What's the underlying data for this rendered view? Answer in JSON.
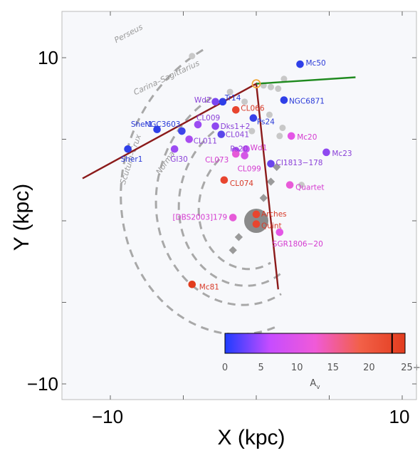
{
  "chart_data": {
    "type": "scatter",
    "xlabel": "X (kpc)",
    "ylabel": "Y (kpc)",
    "xlim": [
      -12,
      10
    ],
    "ylim": [
      -10.5,
      12
    ],
    "x_ticks": [
      {
        "value": -10,
        "label": "−10"
      },
      {
        "value": 10,
        "label": "10"
      }
    ],
    "y_ticks": [
      {
        "value": 10,
        "label": "10"
      },
      {
        "value": -10,
        "label": "−10"
      }
    ],
    "spiral_arms": [
      {
        "name": "Perseus",
        "label_pos": [
          -9.6,
          10.9
        ],
        "label_angle": -28
      },
      {
        "name": "Carina–Sagittarius",
        "label_pos": [
          -8.3,
          7.7
        ],
        "label_angle": -25
      },
      {
        "name": "Scutum–Crux",
        "label_pos": [
          -9.0,
          2.2
        ],
        "label_angle": -72
      },
      {
        "name": "Norma",
        "label_pos": [
          -6.6,
          2.8
        ],
        "label_angle": -55
      }
    ],
    "colorbar": {
      "label": "A_v",
      "label_main": "A",
      "label_sub": "v",
      "min": 0,
      "max": 25,
      "ticks": [
        {
          "value": 0,
          "label": "0"
        },
        {
          "value": 5,
          "label": "5"
        },
        {
          "value": 10,
          "label": "10"
        },
        {
          "value": 15,
          "label": "15"
        },
        {
          "value": 20,
          "label": "20"
        },
        {
          "value": 25,
          "label": "25+"
        }
      ],
      "marker": 23.2,
      "colors": [
        "#1e3cff",
        "#c64cff",
        "#f05ad8",
        "#f26048",
        "#e23c1e"
      ]
    },
    "sun": {
      "x": 0,
      "y": 8.4,
      "color": "#f2a93b"
    },
    "galactic_center": {
      "x": 0,
      "y": 0,
      "color": "#8a8a8a"
    },
    "grey_points": [
      {
        "x": -4.4,
        "y": 10.1
      },
      {
        "x": 1.9,
        "y": 8.7
      },
      {
        "x": 0.5,
        "y": 8.3
      },
      {
        "x": 1.0,
        "y": 8.2
      },
      {
        "x": 1.5,
        "y": 8.1
      },
      {
        "x": -1.8,
        "y": 7.9
      },
      {
        "x": -0.8,
        "y": 7.3
      },
      {
        "x": 0.9,
        "y": 6.5
      },
      {
        "x": -0.3,
        "y": 5.5
      },
      {
        "x": 1.6,
        "y": 5.2
      },
      {
        "x": 1.8,
        "y": 5.7
      },
      {
        "x": 3.1,
        "y": 2.2
      }
    ],
    "grey_diamonds": [
      {
        "x": 1.4,
        "y": 3.3
      },
      {
        "x": 1.0,
        "y": 2.4
      },
      {
        "x": 0.5,
        "y": 1.4
      },
      {
        "x": -1.2,
        "y": -1.0
      },
      {
        "x": -1.6,
        "y": -1.8
      }
    ],
    "lines": [
      {
        "name": "dark-red-boundary",
        "color": "#8b1a1a",
        "points": [
          [
            -11.9,
            2.6
          ],
          [
            0,
            8.4
          ],
          [
            1.5,
            -4.2
          ]
        ]
      },
      {
        "name": "green-boundary",
        "color": "#1f8a1f",
        "points": [
          [
            0,
            8.4
          ],
          [
            6.8,
            8.8
          ]
        ]
      }
    ],
    "clusters": [
      {
        "name": "Mc50",
        "x": 3.0,
        "y": 9.6,
        "av": 2,
        "color": "#2f3fe8"
      },
      {
        "name": "NGC6871",
        "x": 1.9,
        "y": 7.4,
        "av": 2,
        "color": "#2f3fe8"
      },
      {
        "name": "Wd2",
        "x": -2.8,
        "y": 7.3,
        "av": 7,
        "color": "#7a45f0"
      },
      {
        "name": "Tr14",
        "x": -2.3,
        "y": 7.3,
        "av": 2,
        "color": "#2f3fe8"
      },
      {
        "name": "CL066",
        "x": -1.4,
        "y": 6.8,
        "av": 22,
        "color": "#e8452f"
      },
      {
        "name": "Ps24",
        "x": -0.2,
        "y": 6.3,
        "av": 3,
        "color": "#3640e8"
      },
      {
        "name": "NGC3603",
        "x": -5.1,
        "y": 5.5,
        "av": 4,
        "color": "#3d44ea"
      },
      {
        "name": "CL009",
        "x": -4.0,
        "y": 5.9,
        "av": 8,
        "color": "#9c4cf2"
      },
      {
        "name": "Dks1+2",
        "x": -2.8,
        "y": 5.8,
        "av": 7,
        "color": "#8f49f0"
      },
      {
        "name": "CL041",
        "x": -2.4,
        "y": 5.3,
        "av": 5,
        "color": "#5a45ea"
      },
      {
        "name": "Mc20",
        "x": 2.4,
        "y": 5.2,
        "av": 12,
        "color": "#e456e6"
      },
      {
        "name": "Sher1",
        "x": -6.8,
        "y": 5.6,
        "av": 2,
        "color": "#2f3fe8"
      },
      {
        "name": "CL011",
        "x": -4.6,
        "y": 5.0,
        "av": 9,
        "color": "#a84cf0"
      },
      {
        "name": "Ps20",
        "x": -1.4,
        "y": 4.3,
        "av": 9,
        "color": "#a84cf0"
      },
      {
        "name": "Wd1",
        "x": -0.7,
        "y": 4.4,
        "av": 11,
        "color": "#c656f0"
      },
      {
        "name": "CL073",
        "x": -1.4,
        "y": 4.1,
        "av": 14,
        "color": "#e65ad8"
      },
      {
        "name": "Mc23",
        "x": 4.8,
        "y": 4.2,
        "av": 7,
        "color": "#8f49f0"
      },
      {
        "name": "Sher1",
        "x": -8.8,
        "y": 4.4,
        "av": 2,
        "color": "#2f3fe8"
      },
      {
        "name": "GI30",
        "x": -5.6,
        "y": 4.4,
        "av": 8,
        "color": "#9c4cf2"
      },
      {
        "name": "CL099",
        "x": -0.8,
        "y": 4.0,
        "av": 13,
        "color": "#d456e6"
      },
      {
        "name": "CI1813−178",
        "x": 1.0,
        "y": 3.5,
        "av": 6,
        "color": "#6a45ec"
      },
      {
        "name": "CL074",
        "x": -2.2,
        "y": 2.5,
        "av": 22,
        "color": "#e8452f"
      },
      {
        "name": "Quartet",
        "x": 2.3,
        "y": 2.2,
        "av": 14,
        "color": "#e85ad8"
      },
      {
        "name": "[DBS2003]179",
        "x": -1.6,
        "y": 0.2,
        "av": 14,
        "color": "#e65ad8"
      },
      {
        "name": "Arches",
        "x": 0.0,
        "y": 0.4,
        "av": 22,
        "color": "#e8452f"
      },
      {
        "name": "Quint",
        "x": 0.0,
        "y": -0.2,
        "av": 22,
        "color": "#e8452f"
      },
      {
        "name": "SGR1806−20",
        "x": 1.6,
        "y": -0.7,
        "av": 13,
        "color": "#e456e6"
      },
      {
        "name": "Mc81",
        "x": -4.4,
        "y": -3.9,
        "av": 22,
        "color": "#e23c1e"
      }
    ],
    "cluster_label_colors": {
      "blue": "#2a3ad8",
      "violet": "#8a40d8",
      "magenta": "#d43ad0",
      "red": "#d83a28"
    }
  }
}
